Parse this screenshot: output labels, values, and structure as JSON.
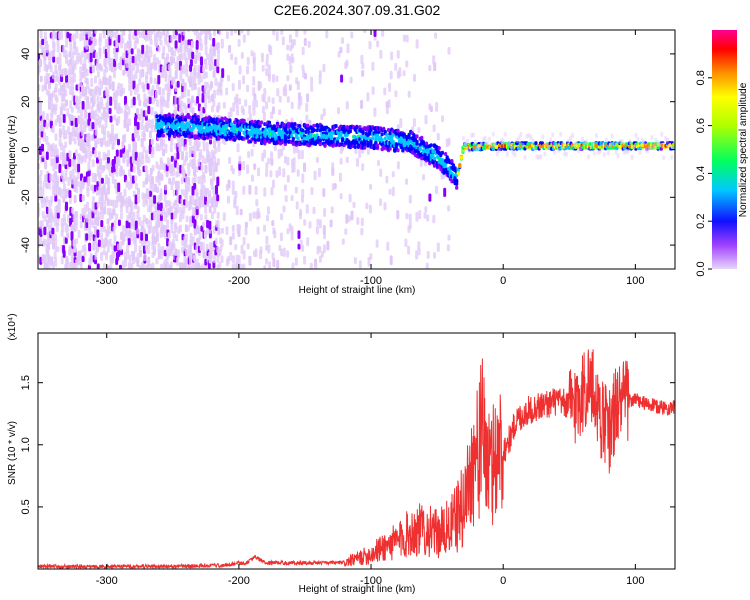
{
  "title": "C2E6.2024.307.09.31.G02",
  "chart_data": [
    {
      "type": "heatmap",
      "xlabel": "Height of straight line (km)",
      "ylabel": "Frequency (Hz)",
      "xlim": [
        -352,
        130
      ],
      "ylim": [
        -50,
        50
      ],
      "xticks": [
        -300,
        -200,
        -100,
        0,
        100
      ],
      "yticks": [
        -40,
        -20,
        0,
        20,
        40
      ],
      "colorbar": {
        "label": "Normalized spectral amplitude",
        "range": [
          0,
          1
        ],
        "ticks": [
          "0.0",
          "0.2",
          "0.4",
          "0.6",
          "0.8"
        ],
        "colors": [
          "#e0c8f8",
          "#8a00ff",
          "#0000ff",
          "#00c8ff",
          "#00ff60",
          "#a8ff00",
          "#ffff00",
          "#ff8000",
          "#ff0000",
          "#ff0080"
        ]
      },
      "ridge": [
        {
          "x": -260,
          "y": 10
        },
        {
          "x": -220,
          "y": 9
        },
        {
          "x": -180,
          "y": 7
        },
        {
          "x": -140,
          "y": 6
        },
        {
          "x": -100,
          "y": 5
        },
        {
          "x": -70,
          "y": 3
        },
        {
          "x": -50,
          "y": -3
        },
        {
          "x": -40,
          "y": -8
        },
        {
          "x": -35,
          "y": -12
        },
        {
          "x": -30,
          "y": 1
        },
        {
          "x": 0,
          "y": 1.5
        },
        {
          "x": 50,
          "y": 1.5
        },
        {
          "x": 130,
          "y": 1.5
        }
      ]
    },
    {
      "type": "line",
      "xlabel": "Height of straight line (km)",
      "ylabel": "SNR (10 * v/v)",
      "multiplier": "(x10⁴)",
      "xlim": [
        -352,
        130
      ],
      "ylim": [
        0,
        1.9
      ],
      "xticks": [
        -300,
        -200,
        -100,
        0,
        100
      ],
      "yticks": [
        "0.5",
        "1.0",
        "1.5"
      ],
      "color": "#ee3030",
      "x": [
        -352,
        -300,
        -250,
        -210,
        -200,
        -195,
        -188,
        -180,
        -150,
        -120,
        -100,
        -90,
        -80,
        -70,
        -60,
        -50,
        -40,
        -30,
        -25,
        -20,
        -15,
        -10,
        -5,
        0,
        5,
        10,
        20,
        30,
        40,
        50,
        55,
        60,
        65,
        70,
        75,
        80,
        85,
        90,
        100,
        110,
        120,
        130
      ],
      "y": [
        0.02,
        0.02,
        0.02,
        0.03,
        0.05,
        0.04,
        0.1,
        0.05,
        0.05,
        0.05,
        0.12,
        0.18,
        0.22,
        0.3,
        0.32,
        0.28,
        0.34,
        0.5,
        0.78,
        0.92,
        1.1,
        0.75,
        0.95,
        0.95,
        1.05,
        1.2,
        1.28,
        1.32,
        1.35,
        1.32,
        1.33,
        1.42,
        1.5,
        1.38,
        1.2,
        1.1,
        1.3,
        1.35,
        1.36,
        1.32,
        1.3,
        1.3
      ]
    }
  ]
}
